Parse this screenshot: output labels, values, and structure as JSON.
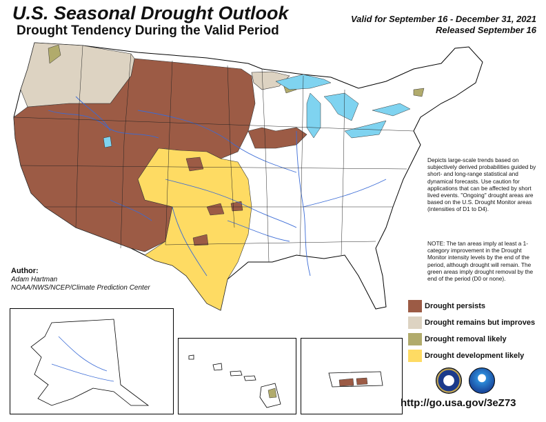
{
  "header": {
    "title": "U.S. Seasonal Drought Outlook",
    "subtitle": "Drought Tendency During the Valid Period",
    "valid": "Valid for September 16 - December 31, 2021",
    "released": "Released September 16"
  },
  "description": "Depicts large-scale trends based on subjectively derived probabilities guided by short- and long-range statistical and dynamical forecasts. Use caution for applications that can be affected by short lived events. \"Ongoing\" drought areas are based on the U.S. Drought Monitor areas (intensities of D1 to D4).",
  "note": "NOTE: The tan areas imply at least a 1-category improvement in the Drought Monitor intensity levels by the end of the period, although drought will remain. The green areas imply drought removal by the end of the period (D0 or none).",
  "author": {
    "heading": "Author:",
    "name": "Adam Hartman",
    "org": "NOAA/NWS/NCEP/Climate Prediction Center"
  },
  "legend": [
    {
      "label": "Drought persists",
      "color": "#9c5b45"
    },
    {
      "label": "Drought remains but improves",
      "color": "#ddd3c2"
    },
    {
      "label": "Drought removal likely",
      "color": "#b1ab6c"
    },
    {
      "label": "Drought development likely",
      "color": "#fedb63"
    }
  ],
  "url": "http://go.usa.gov/3eZ73",
  "colors": {
    "water": "#7fd3f0",
    "rivers": "#3a6bd6",
    "persists": "#9c5b45",
    "improves": "#ddd3c2",
    "removal": "#b1ab6c",
    "development": "#fedb63"
  }
}
